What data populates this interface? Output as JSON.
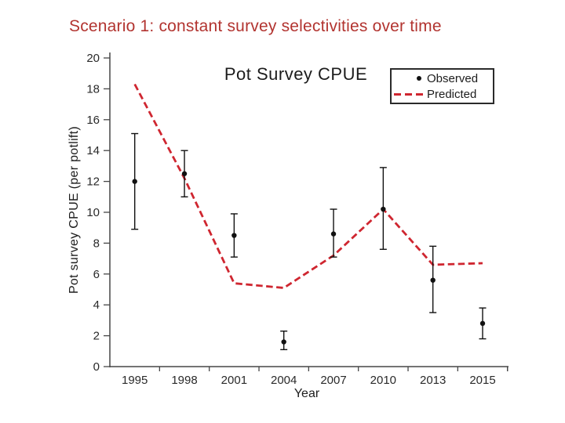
{
  "slide": {
    "title": "Scenario 1: constant survey selectivities over time",
    "title_color": "#b23430",
    "background": "#ffffff"
  },
  "chart_data": {
    "type": "line",
    "title": "Pot Survey CPUE",
    "xlabel": "Year",
    "ylabel": "Pot survey CPUE (per potlift)",
    "ylim": [
      0,
      20
    ],
    "ytick_step": 2,
    "ytick_labels": [
      "0",
      "2",
      "4",
      "6",
      "8",
      "10",
      "12",
      "14",
      "16",
      "18",
      "20"
    ],
    "categories": [
      "1995",
      "1998",
      "2001",
      "2004",
      "2007",
      "2010",
      "2013",
      "2015"
    ],
    "grid": "off",
    "legend_position": "top-right",
    "legend": {
      "entries": [
        {
          "label": "Observed",
          "marker": "dot-icon",
          "color": "#111111"
        },
        {
          "label": "Predicted",
          "marker": "dashed-line-icon",
          "color": "#cf2630"
        }
      ]
    },
    "series": [
      {
        "name": "Observed",
        "type": "scatter-with-errorbars",
        "values": [
          12.0,
          12.5,
          8.5,
          1.6,
          8.6,
          10.2,
          5.6,
          2.8
        ],
        "error_low": [
          8.9,
          11.0,
          7.1,
          1.1,
          7.1,
          7.6,
          3.5,
          1.8
        ],
        "error_high": [
          15.1,
          14.0,
          9.9,
          2.3,
          10.2,
          12.9,
          7.8,
          3.8
        ],
        "color": "#111111"
      },
      {
        "name": "Predicted",
        "type": "dashed-line",
        "values": [
          18.3,
          12.2,
          5.4,
          5.1,
          7.2,
          10.2,
          6.6,
          6.7
        ],
        "color": "#cf2630"
      }
    ],
    "colors": {
      "axis": "#474747",
      "tick_text": "#2a2a2a"
    }
  }
}
